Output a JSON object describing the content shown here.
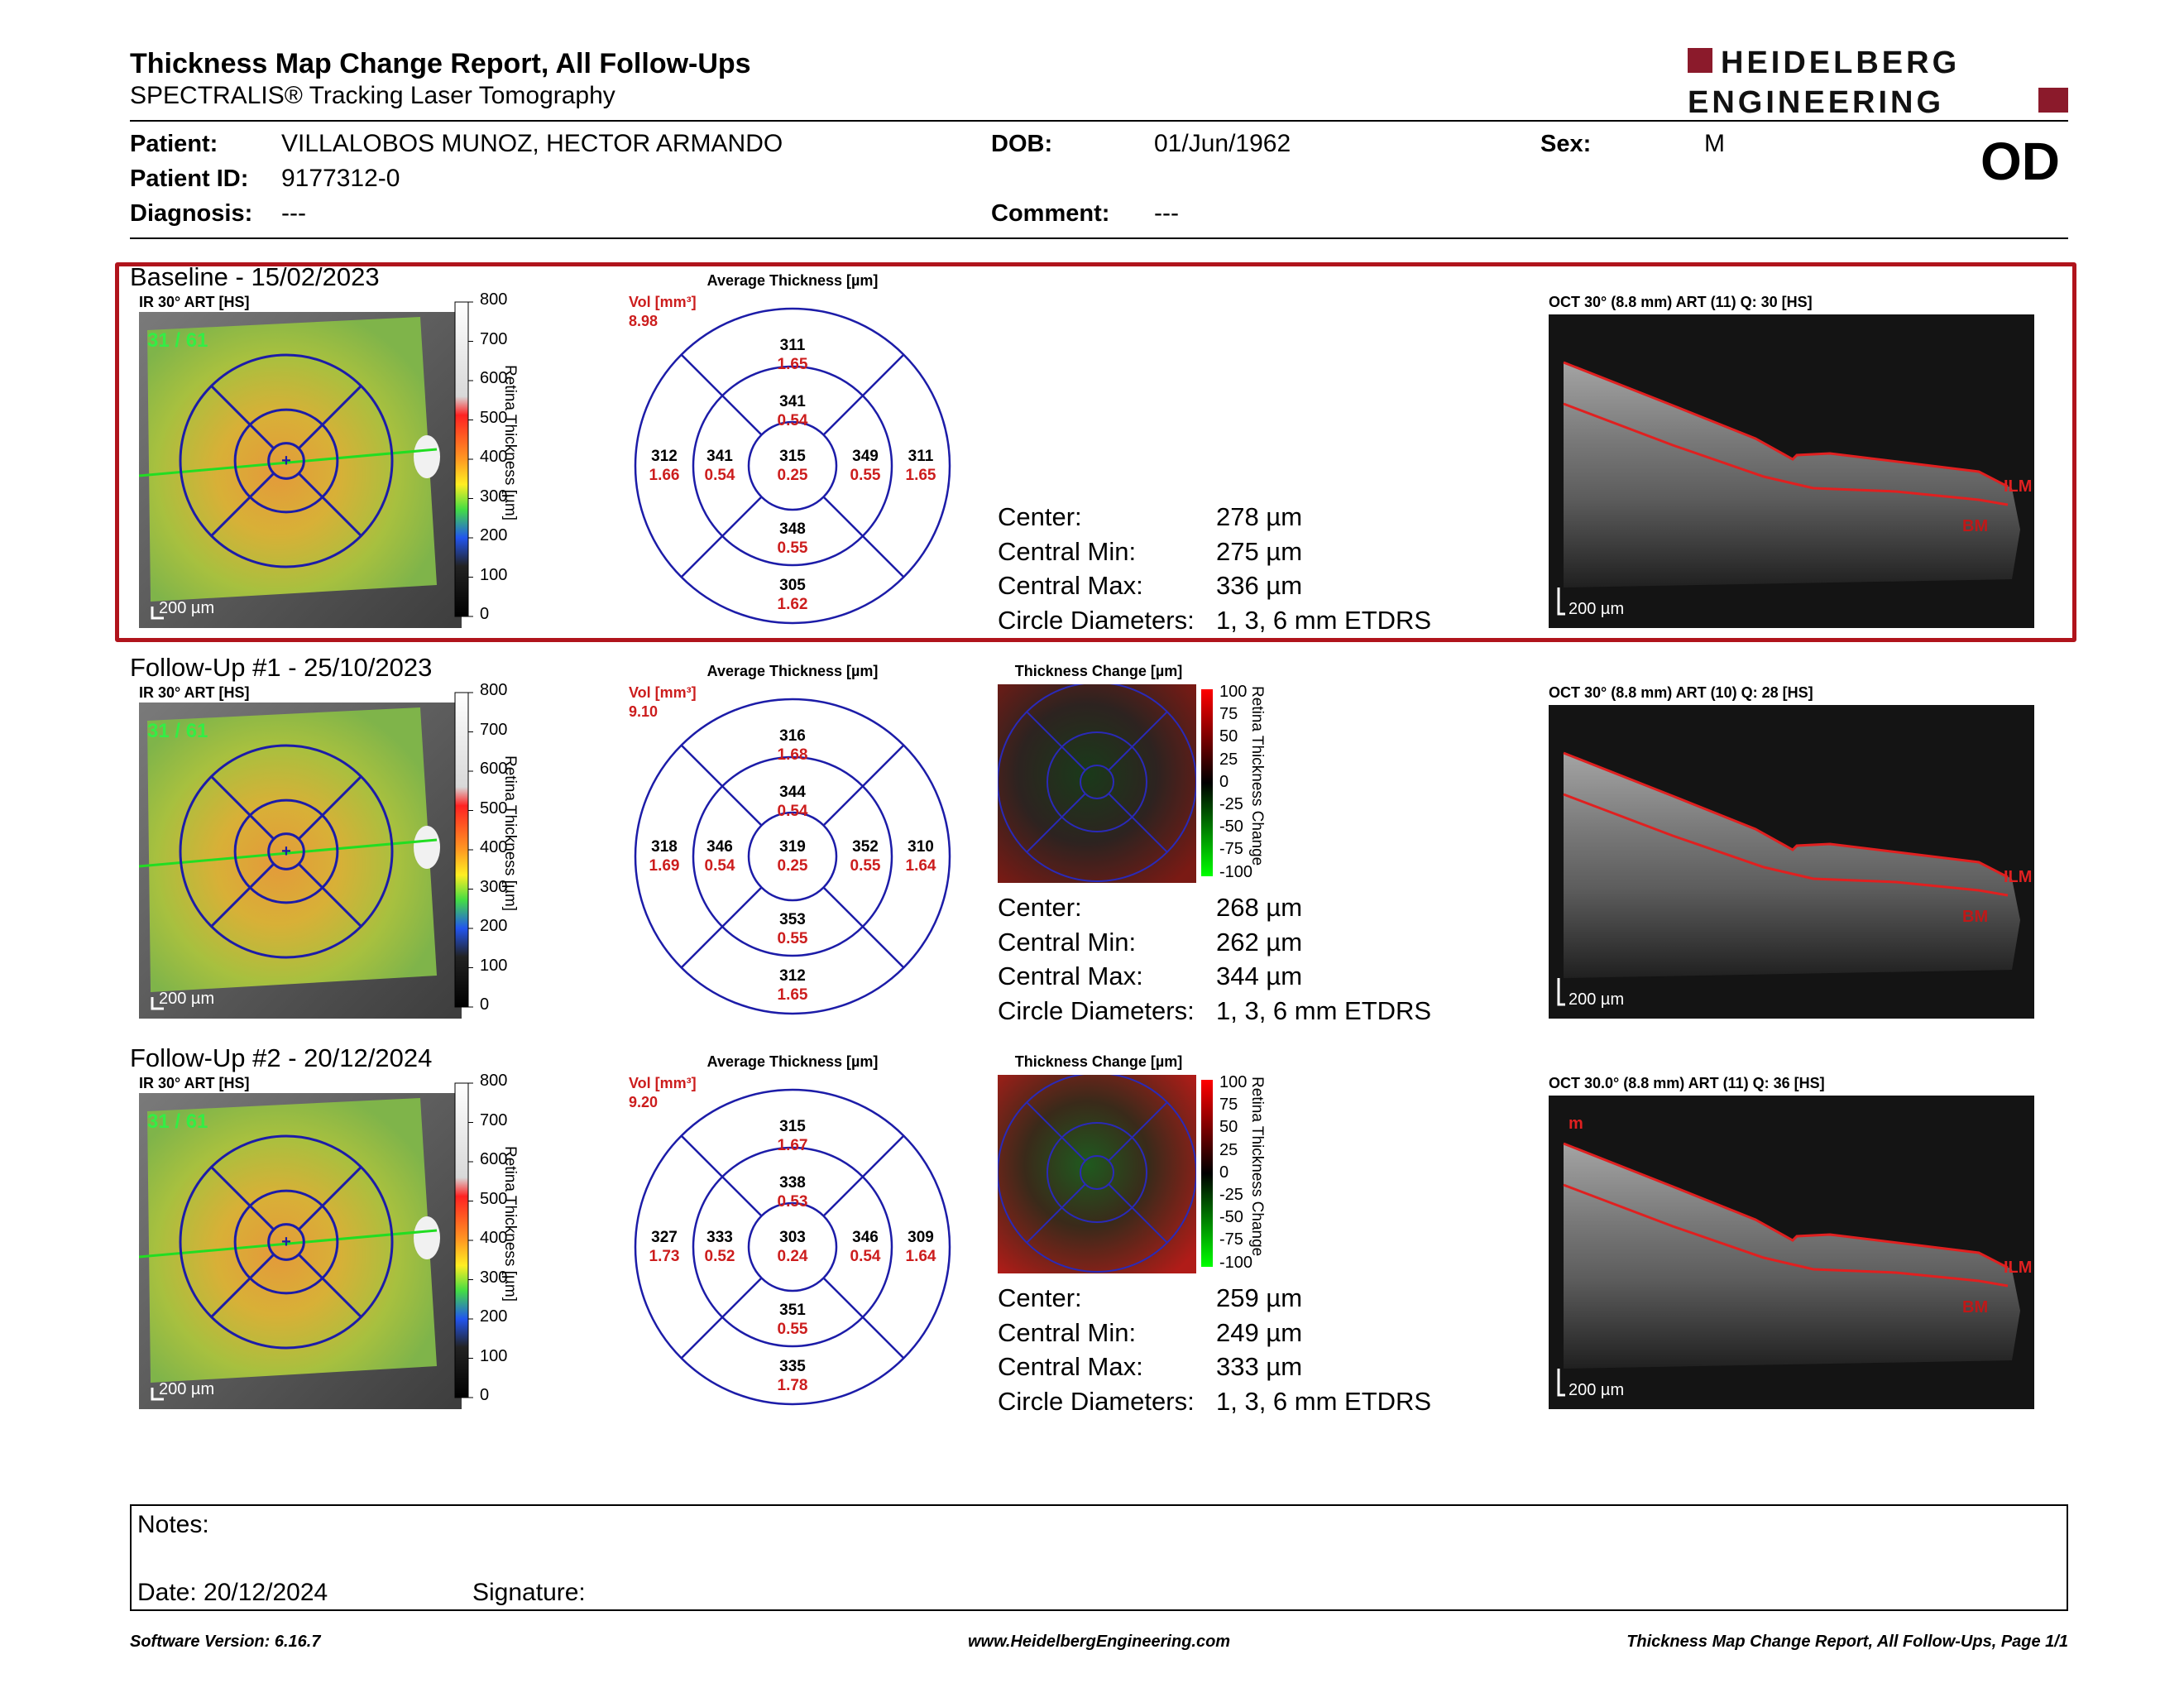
{
  "header": {
    "title": "Thickness Map Change Report, All Follow-Ups",
    "subtitle": "SPECTRALIS® Tracking Laser Tomography",
    "logo_line1": "HEIDELBERG",
    "logo_line2": "ENGINEERING",
    "eye": "OD"
  },
  "patient": {
    "patient_label": "Patient:",
    "patient_name": "VILLALOBOS MUNOZ, HECTOR ARMANDO",
    "dob_label": "DOB:",
    "dob": "01/Jun/1962",
    "sex_label": "Sex:",
    "sex": "M",
    "id_label": "Patient ID:",
    "id": "9177312-0",
    "diagnosis_label": "Diagnosis:",
    "diagnosis": "---",
    "comment_label": "Comment:",
    "comment": "---"
  },
  "common": {
    "avg_thickness_title": "Average Thickness [µm]",
    "thickness_change_title": "Thickness Change [µm]",
    "vol_label": "Vol [mm³]",
    "colorbar_title": "Retina Thickness [µm]",
    "change_bar_title": "Retina Thickness Change",
    "colorbar_ticks": [
      "800",
      "700",
      "600",
      "500",
      "400",
      "300",
      "200",
      "100",
      "0"
    ],
    "change_ticks": [
      "100",
      "75",
      "50",
      "25",
      "0",
      "-25",
      "-50",
      "-75",
      "-100"
    ],
    "scale_label": "200 µm",
    "stat_labels": [
      "Center:",
      "Central Min:",
      "Central Max:",
      "Circle Diameters:"
    ],
    "oct_marker_ilm": "ILM",
    "oct_marker_bm": "BM"
  },
  "visits": [
    {
      "title": "Baseline - 15/02/2023",
      "ir_label": "IR 30° ART [HS]",
      "art_count": "31 / 61",
      "vol": "8.98",
      "sectors": {
        "superior_outer": {
          "t": "311",
          "v": "1.65"
        },
        "superior_inner": {
          "t": "341",
          "v": "0.54"
        },
        "temporal_outer": {
          "t": "312",
          "v": "1.66"
        },
        "temporal_inner": {
          "t": "341",
          "v": "0.54"
        },
        "center": {
          "t": "315",
          "v": "0.25"
        },
        "nasal_inner": {
          "t": "349",
          "v": "0.55"
        },
        "nasal_outer": {
          "t": "311",
          "v": "1.65"
        },
        "inferior_inner": {
          "t": "348",
          "v": "0.55"
        },
        "inferior_outer": {
          "t": "305",
          "v": "1.62"
        }
      },
      "stats": {
        "center": "278 µm",
        "central_min": "275 µm",
        "central_max": "336 µm",
        "circle_diameters": "1, 3, 6 mm ETDRS"
      },
      "oct_label": "OCT 30° (8.8 mm) ART (11) Q: 30 [HS]"
    },
    {
      "title": "Follow-Up #1 - 25/10/2023",
      "ir_label": "IR 30° ART [HS]",
      "art_count": "31 / 61",
      "vol": "9.10",
      "sectors": {
        "superior_outer": {
          "t": "316",
          "v": "1.68"
        },
        "superior_inner": {
          "t": "344",
          "v": "0.54"
        },
        "temporal_outer": {
          "t": "318",
          "v": "1.69"
        },
        "temporal_inner": {
          "t": "346",
          "v": "0.54"
        },
        "center": {
          "t": "319",
          "v": "0.25"
        },
        "nasal_inner": {
          "t": "352",
          "v": "0.55"
        },
        "nasal_outer": {
          "t": "310",
          "v": "1.64"
        },
        "inferior_inner": {
          "t": "353",
          "v": "0.55"
        },
        "inferior_outer": {
          "t": "312",
          "v": "1.65"
        }
      },
      "stats": {
        "center": "268 µm",
        "central_min": "262 µm",
        "central_max": "344 µm",
        "circle_diameters": "1, 3, 6 mm ETDRS"
      },
      "oct_label": "OCT 30° (8.8 mm) ART (10) Q: 28 [HS]"
    },
    {
      "title": "Follow-Up #2 - 20/12/2024",
      "ir_label": "IR 30° ART [HS]",
      "art_count": "31 / 61",
      "vol": "9.20",
      "sectors": {
        "superior_outer": {
          "t": "315",
          "v": "1.67"
        },
        "superior_inner": {
          "t": "338",
          "v": "0.53"
        },
        "temporal_outer": {
          "t": "327",
          "v": "1.73"
        },
        "temporal_inner": {
          "t": "333",
          "v": "0.52"
        },
        "center": {
          "t": "303",
          "v": "0.24"
        },
        "nasal_inner": {
          "t": "346",
          "v": "0.54"
        },
        "nasal_outer": {
          "t": "309",
          "v": "1.64"
        },
        "inferior_inner": {
          "t": "351",
          "v": "0.55"
        },
        "inferior_outer": {
          "t": "335",
          "v": "1.78"
        }
      },
      "stats": {
        "center": "259 µm",
        "central_min": "249 µm",
        "central_max": "333 µm",
        "circle_diameters": "1, 3, 6 mm ETDRS"
      },
      "oct_label": "OCT 30.0° (8.8 mm) ART (11) Q: 36 [HS]",
      "oct_marker_extra": "m"
    }
  ],
  "notes": {
    "notes_label": "Notes:",
    "date_label": "Date: 20/12/2024",
    "signature_label": "Signature:"
  },
  "footer": {
    "software": "Software Version: 6.16.7",
    "website": "www.HeidelbergEngineering.com",
    "page": "Thickness Map Change Report, All Follow-Ups, Page 1/1"
  },
  "colors": {
    "brand": "#8b1a2b",
    "baseline_box": "#b0141c",
    "etdrs_grid": "#1c1ca8",
    "value_red": "#cc1d1d",
    "oct_boundary": "#e02020"
  }
}
